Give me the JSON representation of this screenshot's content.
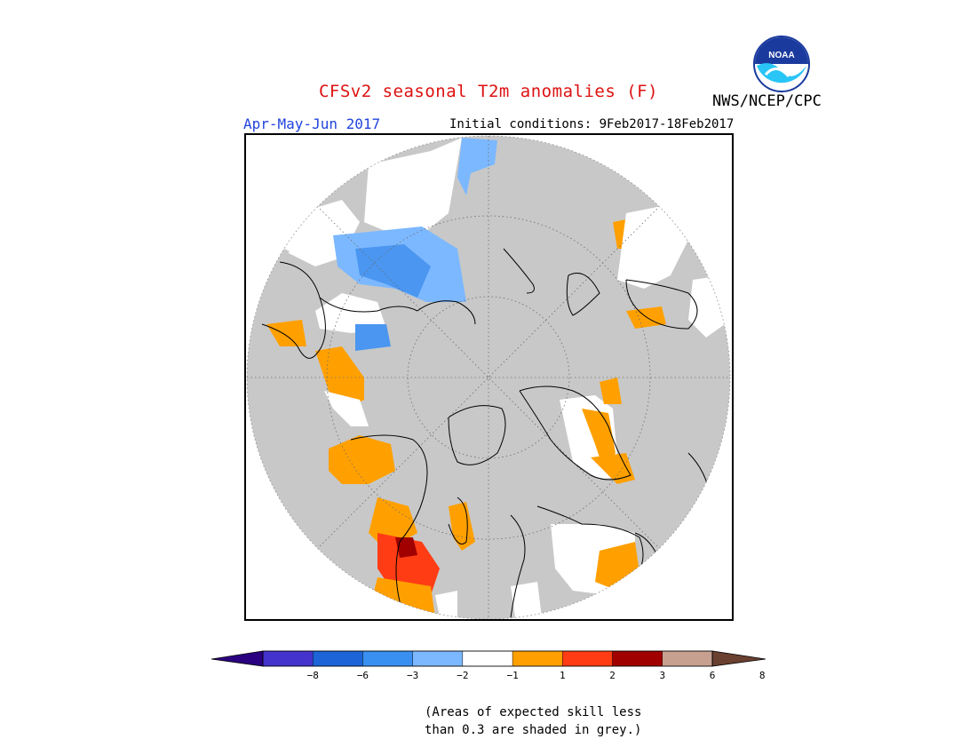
{
  "header": {
    "title": "CFSv2 seasonal T2m anomalies (F)",
    "season": "Apr-May-Jun 2017",
    "initial_conditions": "Initial conditions: 9Feb2017-18Feb2017",
    "agency": "NWS/NCEP/CPC",
    "logo_text": "NOAA"
  },
  "colors": {
    "grey_mask": "#c8c8c8",
    "lt_blue": "#7cb8ff",
    "mid_blue": "#4a96f0",
    "orange": "#ffa000",
    "red_orange": "#ff3c14",
    "dark_red": "#a00000",
    "white": "#ffffff"
  },
  "legend": {
    "ticks": [
      "−8",
      "−6",
      "−3",
      "−2",
      "−1",
      "1",
      "2",
      "3",
      "6",
      "8"
    ],
    "colors": [
      "#2a0080",
      "#4433cc",
      "#1c64d8",
      "#3a90f0",
      "#7cb8ff",
      "#ffffff",
      "#ffa000",
      "#ff3c14",
      "#a00000",
      "#c8a090",
      "#6a4030"
    ]
  },
  "footnote": {
    "line1": "(Areas of expected skill less",
    "line2": "than 0.3 are shaded in grey.)"
  }
}
